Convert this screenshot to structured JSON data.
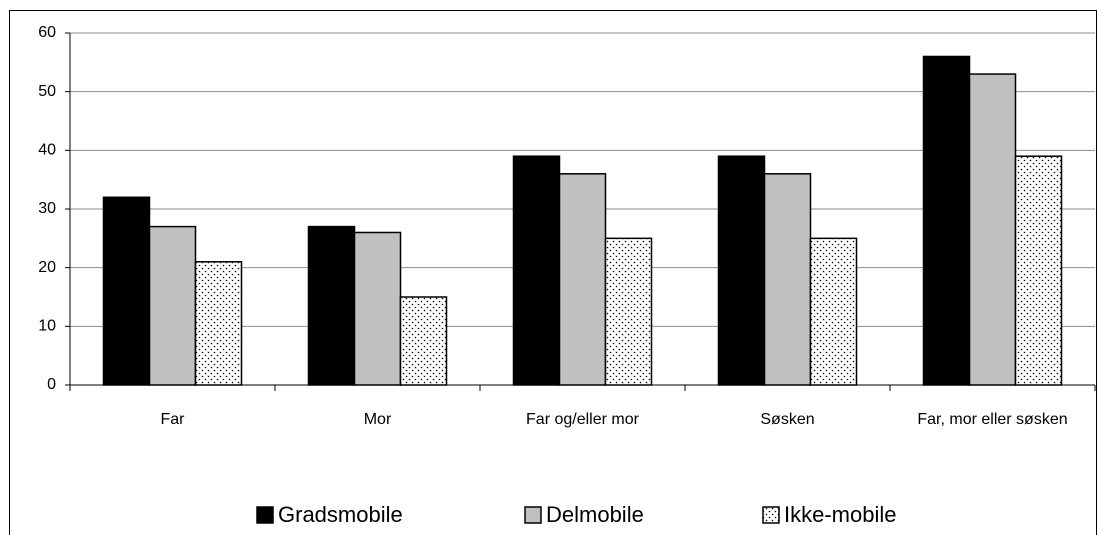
{
  "chart_data": {
    "type": "bar",
    "categories": [
      "Far",
      "Mor",
      "Far og/eller mor",
      "Søsken",
      "Far, mor eller søsken"
    ],
    "series": [
      {
        "name": "Gradsmobile",
        "color": "#000000",
        "values": [
          32,
          27,
          39,
          39,
          56
        ]
      },
      {
        "name": "Delmobile",
        "color": "#c0c0c0",
        "values": [
          27,
          26,
          36,
          36,
          53
        ]
      },
      {
        "name": "Ikke-mobile",
        "color": "#ffffff",
        "pattern": "dots",
        "values": [
          21,
          15,
          25,
          25,
          39
        ]
      }
    ],
    "ylim": [
      0,
      60
    ],
    "yticks": [
      0,
      10,
      20,
      30,
      40,
      50,
      60
    ],
    "grid": true,
    "legend": "bottom"
  }
}
